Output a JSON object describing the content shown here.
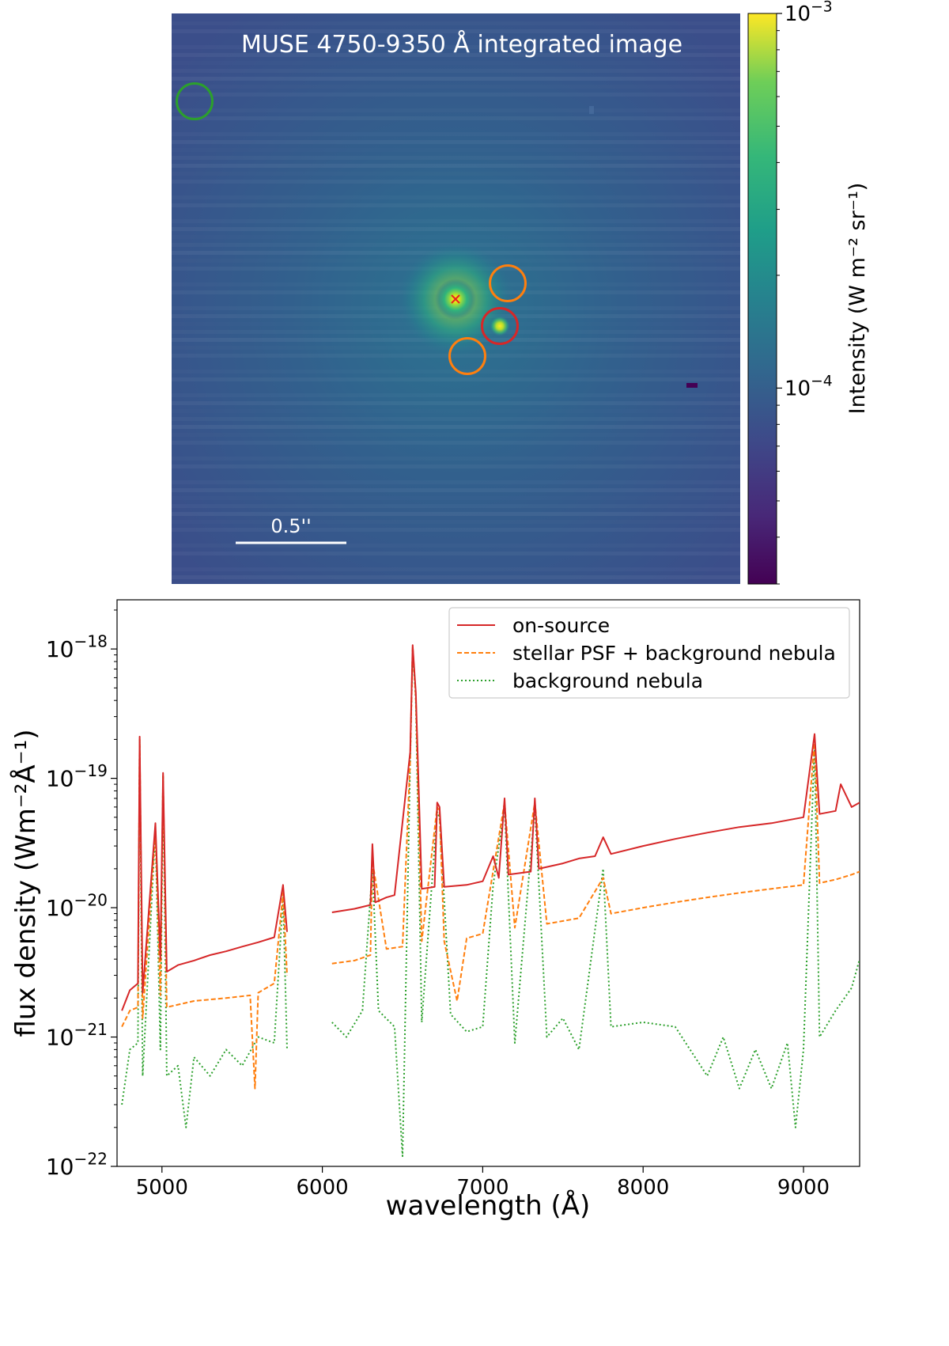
{
  "chart_data": [
    {
      "type": "heatmap",
      "title": "MUSE 4750-9350 Å integrated image",
      "scale_bar_label": "0.5''",
      "colorbar": {
        "label": "Intensity (W m⁻² sr⁻¹)",
        "scale": "log",
        "range": [
          3e-05,
          0.001
        ],
        "ticks": [
          {
            "value": 0.001,
            "base": "10",
            "exp": "−3"
          },
          {
            "value": 0.0001,
            "base": "10",
            "exp": "−4"
          }
        ]
      },
      "sources": [
        {
          "kind": "star",
          "marker": "x",
          "color": "#e8211f"
        },
        {
          "kind": "companion",
          "marker": "circle",
          "color": "#d62728"
        },
        {
          "kind": "psf-background",
          "marker": "circle",
          "color": "#ff7f0e"
        },
        {
          "kind": "psf-background",
          "marker": "circle",
          "color": "#ff7f0e"
        },
        {
          "kind": "nebula-background",
          "marker": "circle",
          "color": "#2ca02c"
        }
      ]
    },
    {
      "type": "line",
      "xlabel": "wavelength (Å)",
      "ylabel": "flux density (Wm⁻²Å⁻¹)",
      "xlim": [
        4720,
        9350
      ],
      "ylim": [
        1e-22,
        2.4e-18
      ],
      "yscale": "log",
      "xticks": [
        5000,
        6000,
        7000,
        8000,
        9000
      ],
      "yticks": [
        {
          "value": 1e-18,
          "base": "10",
          "exp": "−18"
        },
        {
          "value": 1e-19,
          "base": "10",
          "exp": "−19"
        },
        {
          "value": 1e-20,
          "base": "10",
          "exp": "−20"
        },
        {
          "value": 1e-21,
          "base": "10",
          "exp": "−21"
        },
        {
          "value": 1e-22,
          "base": "10",
          "exp": "−22"
        }
      ],
      "legend_position": "top-right",
      "gap": [
        5790,
        6040
      ],
      "series": [
        {
          "name": "on-source",
          "color": "#d62728",
          "dash": "solid",
          "points": [
            [
              4750,
              1.6e-21
            ],
            [
              4800,
              2.3e-21
            ],
            [
              4850,
              2.6e-21
            ],
            [
              4861,
              2.1e-19
            ],
            [
              4880,
              2.2e-21
            ],
            [
              4959,
              4.5e-20
            ],
            [
              4990,
              4e-21
            ],
            [
              5007,
              1.1e-19
            ],
            [
              5030,
              3.2e-21
            ],
            [
              5100,
              3.6e-21
            ],
            [
              5200,
              3.9e-21
            ],
            [
              5300,
              4.3e-21
            ],
            [
              5400,
              4.6e-21
            ],
            [
              5500,
              5e-21
            ],
            [
              5600,
              5.4e-21
            ],
            [
              5700,
              5.9e-21
            ],
            [
              5755,
              1.5e-20
            ],
            [
              5780,
              6.5e-21
            ],
            [
              6060,
              9.2e-21
            ],
            [
              6200,
              9.8e-21
            ],
            [
              6300,
              1.05e-20
            ],
            [
              6312,
              3.1e-20
            ],
            [
              6330,
              1.1e-20
            ],
            [
              6400,
              1.2e-20
            ],
            [
              6450,
              1.25e-20
            ],
            [
              6548,
              1.6e-19
            ],
            [
              6563,
              1.07e-18
            ],
            [
              6583,
              4.6e-19
            ],
            [
              6620,
              1.4e-20
            ],
            [
              6700,
              1.45e-20
            ],
            [
              6716,
              6.5e-20
            ],
            [
              6731,
              6e-20
            ],
            [
              6760,
              1.45e-20
            ],
            [
              6900,
              1.5e-20
            ],
            [
              7000,
              1.6e-20
            ],
            [
              7065,
              2.5e-20
            ],
            [
              7100,
              1.7e-20
            ],
            [
              7136,
              7e-20
            ],
            [
              7160,
              1.8e-20
            ],
            [
              7300,
              1.9e-20
            ],
            [
              7325,
              7e-20
            ],
            [
              7350,
              2e-20
            ],
            [
              7500,
              2.2e-20
            ],
            [
              7600,
              2.4e-20
            ],
            [
              7700,
              2.5e-20
            ],
            [
              7751,
              3.5e-20
            ],
            [
              7800,
              2.6e-20
            ],
            [
              8000,
              3e-20
            ],
            [
              8200,
              3.4e-20
            ],
            [
              8400,
              3.8e-20
            ],
            [
              8600,
              4.2e-20
            ],
            [
              8800,
              4.5e-20
            ],
            [
              9000,
              5e-20
            ],
            [
              9069,
              2.2e-19
            ],
            [
              9100,
              5.3e-20
            ],
            [
              9200,
              5.6e-20
            ],
            [
              9232,
              9e-20
            ],
            [
              9300,
              6e-20
            ],
            [
              9350,
              6.5e-20
            ]
          ]
        },
        {
          "name": "stellar PSF + background nebula",
          "color": "#ff7f0e",
          "dash": "dashed",
          "points": [
            [
              4750,
              1.2e-21
            ],
            [
              4800,
              1.6e-21
            ],
            [
              4850,
              1.7e-21
            ],
            [
              4861,
              2e-19
            ],
            [
              4880,
              1.4e-21
            ],
            [
              4959,
              4e-20
            ],
            [
              4990,
              2.1e-21
            ],
            [
              5007,
              1.05e-19
            ],
            [
              5030,
              1.7e-21
            ],
            [
              5200,
              1.9e-21
            ],
            [
              5400,
              2e-21
            ],
            [
              5550,
              2.1e-21
            ],
            [
              5580,
              4e-22
            ],
            [
              5600,
              2.2e-21
            ],
            [
              5700,
              2.6e-21
            ],
            [
              5755,
              1.3e-20
            ],
            [
              5780,
              3e-21
            ],
            [
              6060,
              3.7e-21
            ],
            [
              6200,
              3.9e-21
            ],
            [
              6300,
              4.3e-21
            ],
            [
              6312,
              2.3e-20
            ],
            [
              6400,
              4.8e-21
            ],
            [
              6500,
              5e-21
            ],
            [
              6548,
              1.4e-19
            ],
            [
              6563,
              1.05e-18
            ],
            [
              6583,
              4.2e-19
            ],
            [
              6620,
              5.5e-21
            ],
            [
              6716,
              6e-20
            ],
            [
              6731,
              5.5e-20
            ],
            [
              6760,
              5.5e-21
            ],
            [
              6840,
              1.9e-21
            ],
            [
              6900,
              5.8e-21
            ],
            [
              7000,
              6.3e-21
            ],
            [
              7136,
              6.5e-20
            ],
            [
              7200,
              7e-21
            ],
            [
              7325,
              6.5e-20
            ],
            [
              7400,
              7.5e-21
            ],
            [
              7600,
              8.3e-21
            ],
            [
              7751,
              1.7e-20
            ],
            [
              7800,
              9e-21
            ],
            [
              8000,
              1e-20
            ],
            [
              8200,
              1.1e-20
            ],
            [
              8400,
              1.2e-20
            ],
            [
              8600,
              1.3e-20
            ],
            [
              8800,
              1.4e-20
            ],
            [
              9000,
              1.5e-20
            ],
            [
              9069,
              2e-19
            ],
            [
              9100,
              1.55e-20
            ],
            [
              9200,
              1.65e-20
            ],
            [
              9300,
              1.8e-20
            ],
            [
              9350,
              1.9e-20
            ]
          ]
        },
        {
          "name": "background nebula",
          "color": "#2ca02c",
          "dash": "dotted",
          "points": [
            [
              4750,
              3e-22
            ],
            [
              4800,
              8e-22
            ],
            [
              4850,
              9e-22
            ],
            [
              4861,
              2e-19
            ],
            [
              4880,
              5e-22
            ],
            [
              4959,
              4e-20
            ],
            [
              4990,
              8e-22
            ],
            [
              5007,
              1.05e-19
            ],
            [
              5030,
              5e-22
            ],
            [
              5100,
              6e-22
            ],
            [
              5150,
              2e-22
            ],
            [
              5200,
              7e-22
            ],
            [
              5300,
              5e-22
            ],
            [
              5400,
              8e-22
            ],
            [
              5500,
              6e-22
            ],
            [
              5600,
              1e-21
            ],
            [
              5700,
              9e-22
            ],
            [
              5755,
              1.2e-20
            ],
            [
              5780,
              8e-22
            ],
            [
              6060,
              1.3e-21
            ],
            [
              6150,
              1e-21
            ],
            [
              6250,
              1.6e-21
            ],
            [
              6312,
              2e-20
            ],
            [
              6350,
              1.6e-21
            ],
            [
              6450,
              1.2e-21
            ],
            [
              6500,
              1.2e-22
            ],
            [
              6548,
              1.4e-19
            ],
            [
              6563,
              1e-18
            ],
            [
              6583,
              4e-19
            ],
            [
              6620,
              1.3e-21
            ],
            [
              6716,
              5.5e-20
            ],
            [
              6731,
              5e-20
            ],
            [
              6800,
              1.5e-21
            ],
            [
              6900,
              1.1e-21
            ],
            [
              7000,
              1.2e-21
            ],
            [
              7065,
              1.5e-20
            ],
            [
              7136,
              6e-20
            ],
            [
              7200,
              9e-22
            ],
            [
              7325,
              6e-20
            ],
            [
              7400,
              1e-21
            ],
            [
              7500,
              1.4e-21
            ],
            [
              7600,
              8e-22
            ],
            [
              7751,
              2e-20
            ],
            [
              7800,
              1.2e-21
            ],
            [
              8000,
              1.3e-21
            ],
            [
              8200,
              1.2e-21
            ],
            [
              8400,
              5e-22
            ],
            [
              8500,
              1e-21
            ],
            [
              8600,
              4e-22
            ],
            [
              8700,
              8e-22
            ],
            [
              8800,
              4e-22
            ],
            [
              8900,
              9e-22
            ],
            [
              8950,
              2e-22
            ],
            [
              9000,
              8e-22
            ],
            [
              9069,
              1.8e-19
            ],
            [
              9100,
              1e-21
            ],
            [
              9200,
              1.6e-21
            ],
            [
              9300,
              2.4e-21
            ],
            [
              9350,
              4e-21
            ]
          ]
        }
      ]
    }
  ]
}
